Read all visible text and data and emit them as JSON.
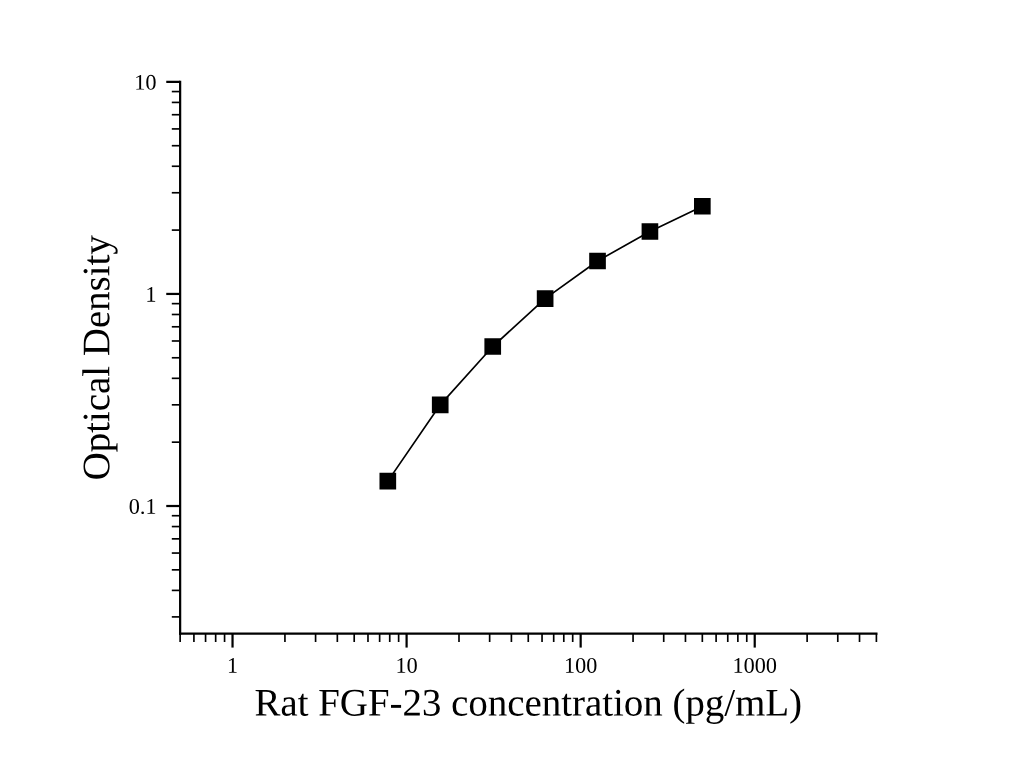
{
  "chart_data": {
    "type": "line",
    "xlabel": "Rat FGF-23 concentration (pg/mL)",
    "ylabel": "Optical Density",
    "x": [
      7.8,
      15.6,
      31.25,
      62.5,
      125,
      250,
      500
    ],
    "series": [
      {
        "color": "#000000",
        "values": [
          0.131,
          0.3,
          0.565,
          0.95,
          1.43,
          1.97,
          2.59
        ]
      }
    ],
    "log": "xy",
    "xlim": [
      0.5,
      5000
    ],
    "ylim": [
      0.025,
      10
    ],
    "xticks": [
      1,
      10,
      100,
      1000
    ],
    "yticks": [
      0.1,
      1,
      10
    ],
    "marker": "square",
    "line_style": "solid",
    "grid": false,
    "legend": false
  }
}
